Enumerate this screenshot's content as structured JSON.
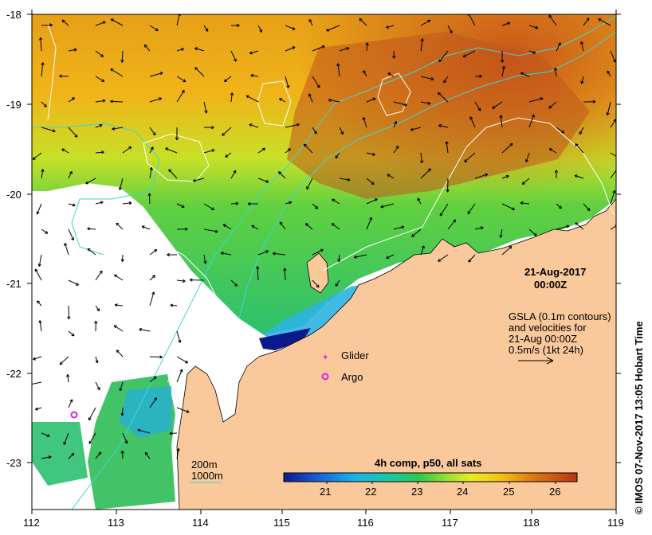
{
  "axes": {
    "x_ticks": [
      "112",
      "113",
      "114",
      "115",
      "116",
      "117",
      "118",
      "119"
    ],
    "y_ticks": [
      "-18",
      "-19",
      "-20",
      "-21",
      "-22",
      "-23"
    ]
  },
  "map": {
    "date": "21-Aug-2017",
    "time": "00:00Z",
    "gsla_lines": [
      "GSLA (0.1m contours)",
      "and velocities for",
      "21-Aug 00:00Z",
      "0.5m/s (1kt 24h)"
    ],
    "legend_glider": "Glider",
    "legend_argo": "Argo",
    "depth_200": "200m",
    "depth_1000": "1000m",
    "colorbar_title": "4h comp, p50, all sats",
    "colorbar_ticks": [
      "21",
      "22",
      "23",
      "24",
      "25",
      "26"
    ],
    "credit": "© IMOS 07-Nov-2017 13:05 Hobart Time"
  },
  "colors": {
    "land": "#f9c89b",
    "contour_1000m": "#3cd6d6",
    "argo_marker": "#e020e0"
  }
}
